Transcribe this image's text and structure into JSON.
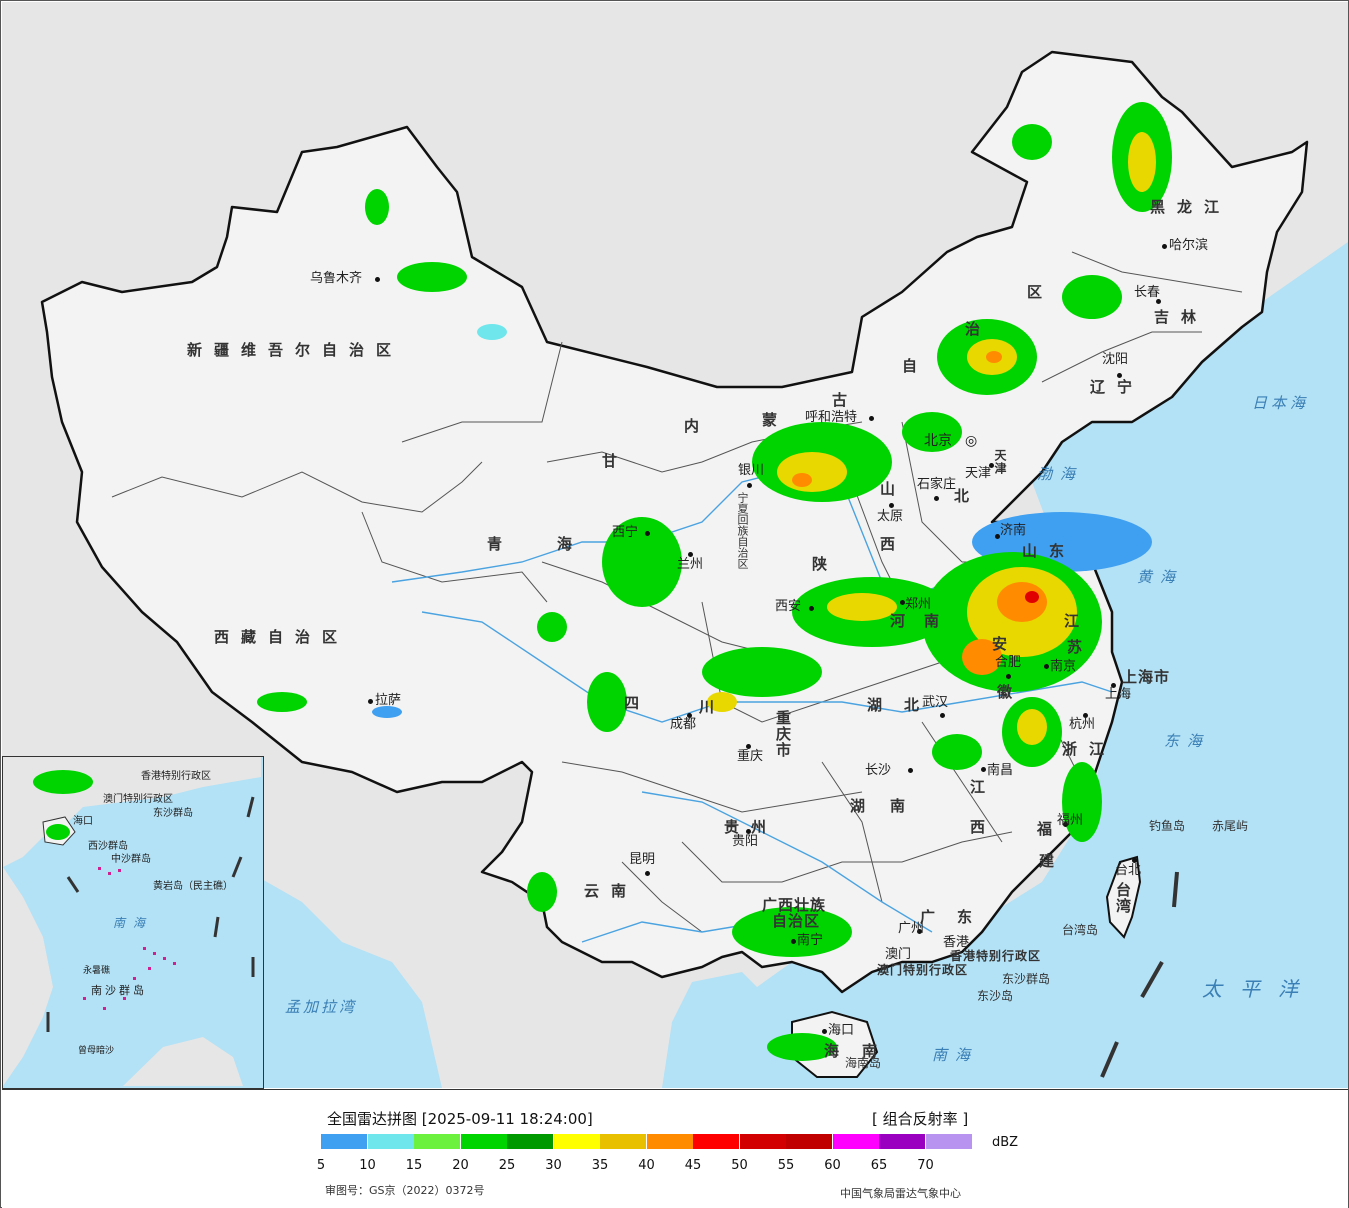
{
  "colors": {
    "ocean": "#b3e1f5",
    "land_china": "#f2f2f2",
    "land_foreign": "#e6e6e6",
    "border": "#111111",
    "river": "#4aa3e0",
    "echo_green": "#2fc733",
    "echo_yellow": "#e8d800",
    "echo_orange": "#ff8c00",
    "echo_red": "#e00000"
  },
  "legend": {
    "title": "全国雷达拼图 [2025-09-11 18:24:00]",
    "product": "[ 组合反射率 ]",
    "unit": "dBZ",
    "swatches": [
      "#3f9ff0",
      "#6fe6ec",
      "#6cf23e",
      "#00d400",
      "#009a00",
      "#ffff00",
      "#e8c000",
      "#ff8c00",
      "#ff0000",
      "#d20000",
      "#c00000",
      "#ff00ff",
      "#9a00c0",
      "#b894f0"
    ],
    "ticks": [
      "5",
      "10",
      "15",
      "20",
      "25",
      "30",
      "35",
      "40",
      "45",
      "50",
      "55",
      "60",
      "65",
      "70"
    ],
    "approval": "审图号：GS京（2022）0372号",
    "source": "中国气象局雷达气象中心"
  },
  "regions": {
    "xinjiang": "新疆维吾尔自治区",
    "tibet": "西藏自治区",
    "qinghai_1": "青",
    "qinghai_2": "海",
    "gansu": "甘",
    "neimeng_1": "内",
    "neimeng_2": "蒙",
    "neimeng_3": "古",
    "neimeng_4": "自",
    "neimeng_5": "治",
    "neimeng_6": "区",
    "heilongjiang": "黑龙江",
    "jilin": "吉林",
    "liaoning": "辽宁",
    "hebei": "北",
    "shanxi_1": "山",
    "shanxi_2": "西",
    "shaanxi": "陕",
    "henan_1": "河",
    "henan_2": "南",
    "shandong": "山东",
    "jiangsu_1": "江",
    "jiangsu_2": "苏",
    "anhui_1": "安",
    "anhui_2": "徽",
    "sichuan": "四",
    "sichuan_2": "川",
    "hubei_1": "湖",
    "hubei_2": "北",
    "chongqing": "重庆市",
    "hunan_1": "湖",
    "hunan_2": "南",
    "jiangxi_1": "江",
    "jiangxi_2": "西",
    "zhejiang": "浙江",
    "fujian_1": "福",
    "fujian_2": "建",
    "guizhou": "贵州",
    "yunnan": "云南",
    "guangxi_1": "广西壮族",
    "guangxi_2": "自治区",
    "guangdong_1": "广",
    "guangdong_2": "东",
    "hainan_1": "海",
    "hainan_2": "南",
    "taiwan": "台湾",
    "shanghai": "上海市",
    "tianjin": "天津",
    "ningxia": "宁夏回族自治区",
    "hk": "香港特别行政区",
    "macau": "澳门特别行政区"
  },
  "cities": {
    "urumqi": "乌鲁木齐",
    "lhasa": "拉萨",
    "xining": "西宁",
    "lanzhou": "兰州",
    "yinchuan": "银川",
    "hohhot": "呼和浩特",
    "beijing": "北京",
    "tianjin": "天津",
    "shijiazhuang": "石家庄",
    "taiyuan": "太原",
    "jinan": "济南",
    "xian": "西安",
    "zhengzhou": "郑州",
    "hefei": "合肥",
    "nanjing": "南京",
    "shanghai": "上海",
    "hangzhou": "杭州",
    "wuhan": "武汉",
    "chengdu": "成都",
    "chongqing": "重庆",
    "changsha": "长沙",
    "nanchang": "南昌",
    "fuzhou": "福州",
    "taibei": "台北",
    "guiyang": "贵阳",
    "kunming": "昆明",
    "nanning": "南宁",
    "guangzhou": "广州",
    "hongkong": "香港",
    "macao": "澳门",
    "haikou": "海口",
    "shenyang": "沈阳",
    "changchun": "长春",
    "harbin": "哈尔滨"
  },
  "seas": {
    "bohai": "渤海",
    "yellow_sea": "黄海",
    "east_sea": "东海",
    "south_sea": "南海",
    "japan_sea": "日本海",
    "pacific": "太平洋",
    "bengal": "孟加拉湾"
  },
  "islands": {
    "diaoyu": "钓鱼岛",
    "chiwei": "赤尾屿",
    "taiwan_island": "台湾岛",
    "dongsha_qd": "东沙群岛",
    "dongsha_d": "东沙岛",
    "hainan_island": "海南岛"
  },
  "inset": {
    "hk": "香港特别行政区",
    "macau": "澳门特别行政区",
    "dongsha": "东沙群岛",
    "xisha": "西沙群岛",
    "zhongsha": "中沙群岛",
    "huangyan": "黄岩岛（民主礁）",
    "south_sea": "南海",
    "yongshu": "永暑礁",
    "nansha": "南沙群岛",
    "zengmu": "曾母暗沙",
    "haikou": "海口"
  }
}
